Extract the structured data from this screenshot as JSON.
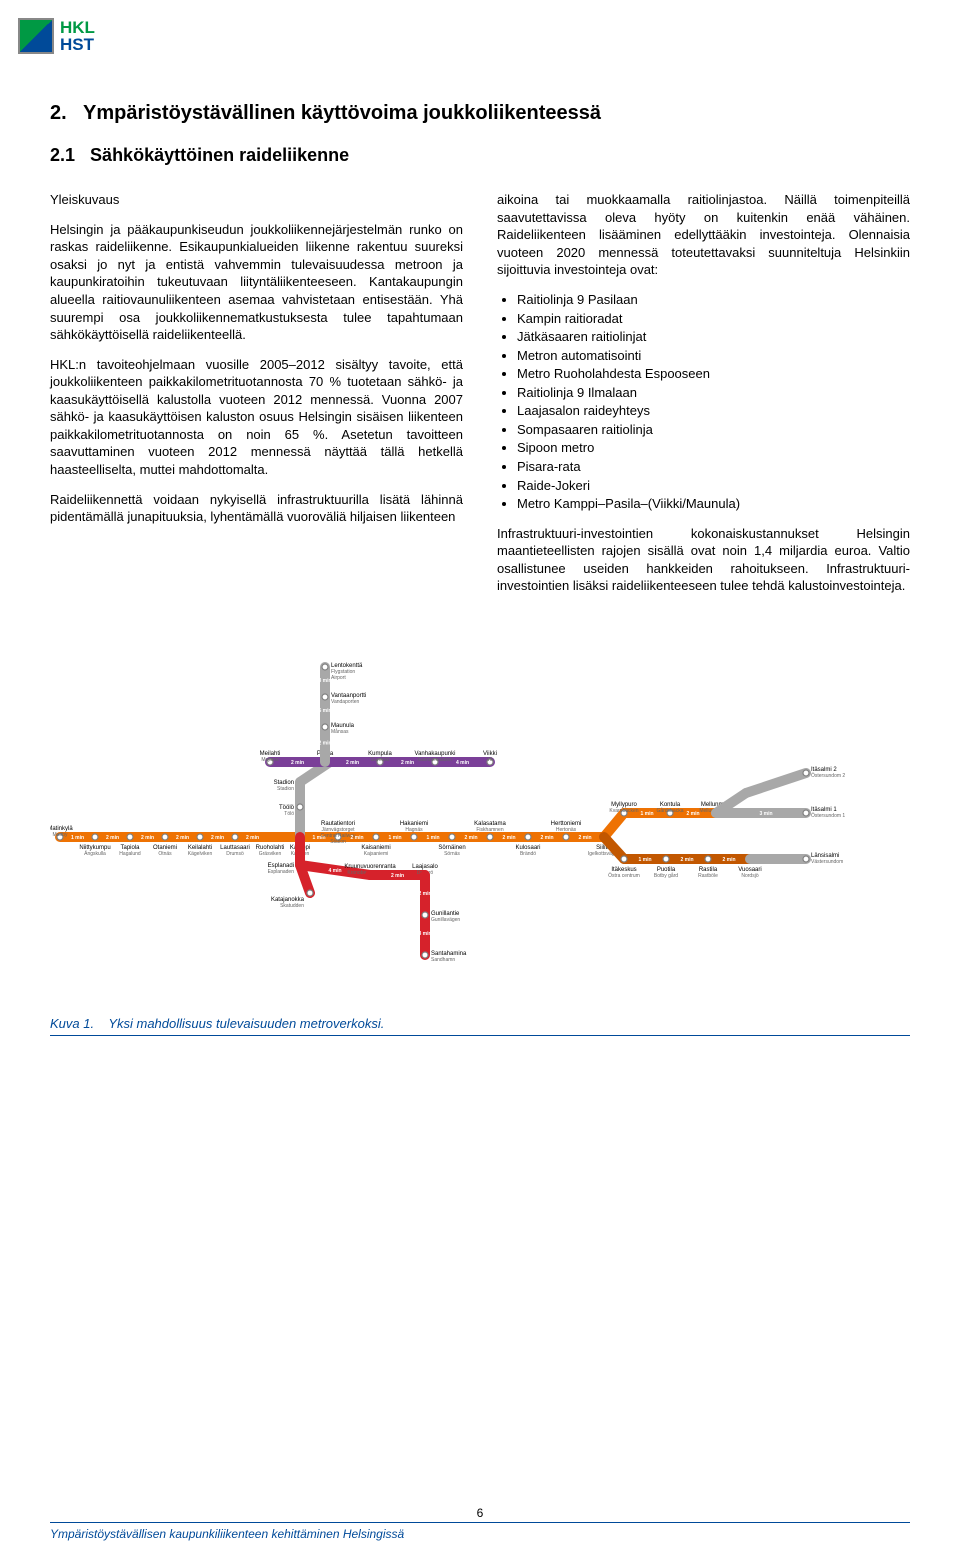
{
  "logo": {
    "top": "HKL",
    "bottom": "HST"
  },
  "section": {
    "number": "2.",
    "title": "Ympäristöystävällinen käyttövoima joukkoliikenteessä",
    "sub_number": "2.1",
    "sub_title": "Sähkökäyttöinen raideliikenne"
  },
  "left_col": {
    "subhead": "Yleiskuvaus",
    "p1": "Helsingin ja pääkaupunkiseudun joukkoliikennejärjestelmän runko on raskas raideliikenne. Esikaupunkialueiden liikenne rakentuu suureksi osaksi jo nyt ja entistä vahvemmin tulevaisuudessa metroon ja kaupunkiratoihin tukeutuvaan liityntäliikenteeseen. Kantakaupungin alueella raitiovaunuliikenteen asemaa vahvistetaan entisestään. Yhä suurempi osa joukkoliikennematkustuksesta tulee tapahtumaan sähkökäyttöisellä raideliikenteellä.",
    "p2": "HKL:n tavoiteohjelmaan vuosille 2005–2012 sisältyy tavoite, että joukkoliikenteen paikkakilometrituotannosta 70 % tuotetaan sähkö- ja kaasukäyttöisellä kalustolla vuoteen 2012 mennessä. Vuonna 2007 sähkö- ja kaasukäyttöisen kaluston osuus Helsingin sisäisen liikenteen paikkakilometrituotannosta on noin 65 %. Asetetun tavoitteen saavuttaminen vuoteen 2012 mennessä näyttää tällä hetkellä haasteelliselta, muttei mahdottomalta.",
    "p3": "Raideliikennettä voidaan nykyisellä infrastruktuurilla lisätä lähinnä pidentämällä junapituuksia, lyhentämällä vuoroväliä hiljaisen liikenteen"
  },
  "right_col": {
    "p1": "aikoina tai muokkaamalla raitiolinjastoa. Näillä toimenpiteillä saavutettavissa oleva hyöty on kuitenkin enää vähäinen. Raideliikenteen lisääminen edellyttääkin investointeja. Olennaisia vuoteen 2020 mennessä toteutettavaksi suunniteltuja Helsinkiin sijoittuvia investointeja ovat:",
    "bullets": [
      "Raitiolinja 9 Pasilaan",
      "Kampin raitioradat",
      "Jätkäsaaren raitiolinjat",
      "Metron automatisointi",
      "Metro Ruoholahdesta Espooseen",
      "Raitiolinja 9 Ilmalaan",
      "Laajasalon raideyhteys",
      "Sompasaaren raitiolinja",
      "Sipoon metro",
      "Pisara-rata",
      "Raide-Jokeri",
      "Metro Kamppi–Pasila–(Viikki/Maunula)"
    ],
    "p2": "Infrastruktuuri-investointien kokonaiskustannukset Helsingin maantieteellisten rajojen sisällä ovat noin 1,4 miljardia euroa. Valtio osallistunee useiden hankkeiden rahoitukseen. Infrastruktuuri-investointien lisäksi raideliikenteeseen tulee tehdä kalustoinvestointeja."
  },
  "map": {
    "type": "network",
    "colors": {
      "orange": "#ee7203",
      "red": "#d6222b",
      "purple": "#7a3f98",
      "grey": "#a8a8a8",
      "dark_orange": "#c25700",
      "text": "#000000",
      "time_text": "#ffffff"
    },
    "line_width": 10,
    "station_circle": {
      "r": 3,
      "fill": "#ffffff",
      "stroke": "#808080",
      "sw": 1.2
    },
    "stations_top": [
      {
        "name": "Lentokenttä",
        "sub": "Flygstation\nAirport"
      },
      {
        "name": "Vantaanportti",
        "sub": "Vandaporten"
      },
      {
        "name": "Maunula",
        "sub": "Månsas"
      }
    ],
    "purple_row": [
      {
        "name": "Meilahti",
        "sub": "Mejlans"
      },
      {
        "name": "Pasila",
        "sub": "Böle"
      },
      {
        "name": "Kumpula",
        "sub": "Gumtäkt"
      },
      {
        "name": "Vanhakaupunki",
        "sub": "Gammelstaden"
      },
      {
        "name": "Viikki",
        "sub": "Vik"
      }
    ],
    "orange_row_left": [
      {
        "name": "Matinkylä",
        "sub": "Mattby"
      },
      {
        "name": "Niittykumpu",
        "sub": "Ängskulla"
      },
      {
        "name": "Tapiola",
        "sub": "Hagalund"
      },
      {
        "name": "Otaniemi",
        "sub": "Otnäs"
      },
      {
        "name": "Keilalahti",
        "sub": "Kägelviken"
      },
      {
        "name": "Lauttasaari",
        "sub": "Drumsö"
      },
      {
        "name": "Ruoholahti",
        "sub": "Gräsviken"
      }
    ],
    "orange_row_mid": [
      {
        "name": "Kamppi",
        "sub": "Kampen"
      },
      {
        "name": "Rautatientori",
        "sub": "Järnvägstorget\nCentral Railway\nStation"
      },
      {
        "name": "Kaisaniemi",
        "sub": "Kajsaniemi"
      },
      {
        "name": "Hakaniemi",
        "sub": "Hagnäs"
      },
      {
        "name": "Sörnäinen",
        "sub": "Sörnäs"
      },
      {
        "name": "Kalasatama",
        "sub": "Fiskhamnen"
      },
      {
        "name": "Kulosaari",
        "sub": "Brändö"
      },
      {
        "name": "Herttoniemi",
        "sub": "Hertonäs"
      },
      {
        "name": "Siilitie",
        "sub": "Igelkottsvägen"
      }
    ],
    "orange_row_right_top": [
      {
        "name": "Myllypuro",
        "sub": "Kvarnbäcken"
      },
      {
        "name": "Kontula",
        "sub": "Gårdsbacka"
      },
      {
        "name": "Mellunmäki",
        "sub": "Mellungsbacka"
      }
    ],
    "orange_row_right_bot": [
      {
        "name": "Itäkeskus",
        "sub": "Östra centrum"
      },
      {
        "name": "Puotila",
        "sub": "Botby gård"
      },
      {
        "name": "Rastila",
        "sub": "Rastböle"
      },
      {
        "name": "Vuosaari",
        "sub": "Nordsjö"
      }
    ],
    "grey_east": [
      {
        "name": "Itäsalmi 2",
        "sub": "Östersundom 2"
      },
      {
        "name": "Itäsalmi 1",
        "sub": "Östersundom 1"
      },
      {
        "name": "Länsisalmi",
        "sub": "Västersundom"
      }
    ],
    "red_south": [
      {
        "name": "Esplanadi",
        "sub": "Esplanaden"
      },
      {
        "name": "Katajanokka",
        "sub": "Skatudden"
      },
      {
        "name": "Kruunuvuorenranta",
        "sub": "Kronobergsstranden"
      },
      {
        "name": "Laajasalo",
        "sub": "Degerö"
      },
      {
        "name": "Gunillantie",
        "sub": "Gunillavägen"
      },
      {
        "name": "Santahamina",
        "sub": "Sandhamn"
      }
    ],
    "grey_mid": [
      {
        "name": "Stadion",
        "sub": "Stadion"
      },
      {
        "name": "Töölö",
        "sub": "Tölö"
      }
    ],
    "times": {
      "default": "2 min",
      "one": "1 min",
      "three": "3 min",
      "four": "4 min",
      "five": "5 min"
    }
  },
  "figure": {
    "label": "Kuva 1.",
    "caption": "Yksi mahdollisuus tulevaisuuden metroverkoksi."
  },
  "footer": {
    "page": "6",
    "text": "Ympäristöystävällisen kaupunkiliikenteen kehittäminen Helsingissä"
  }
}
